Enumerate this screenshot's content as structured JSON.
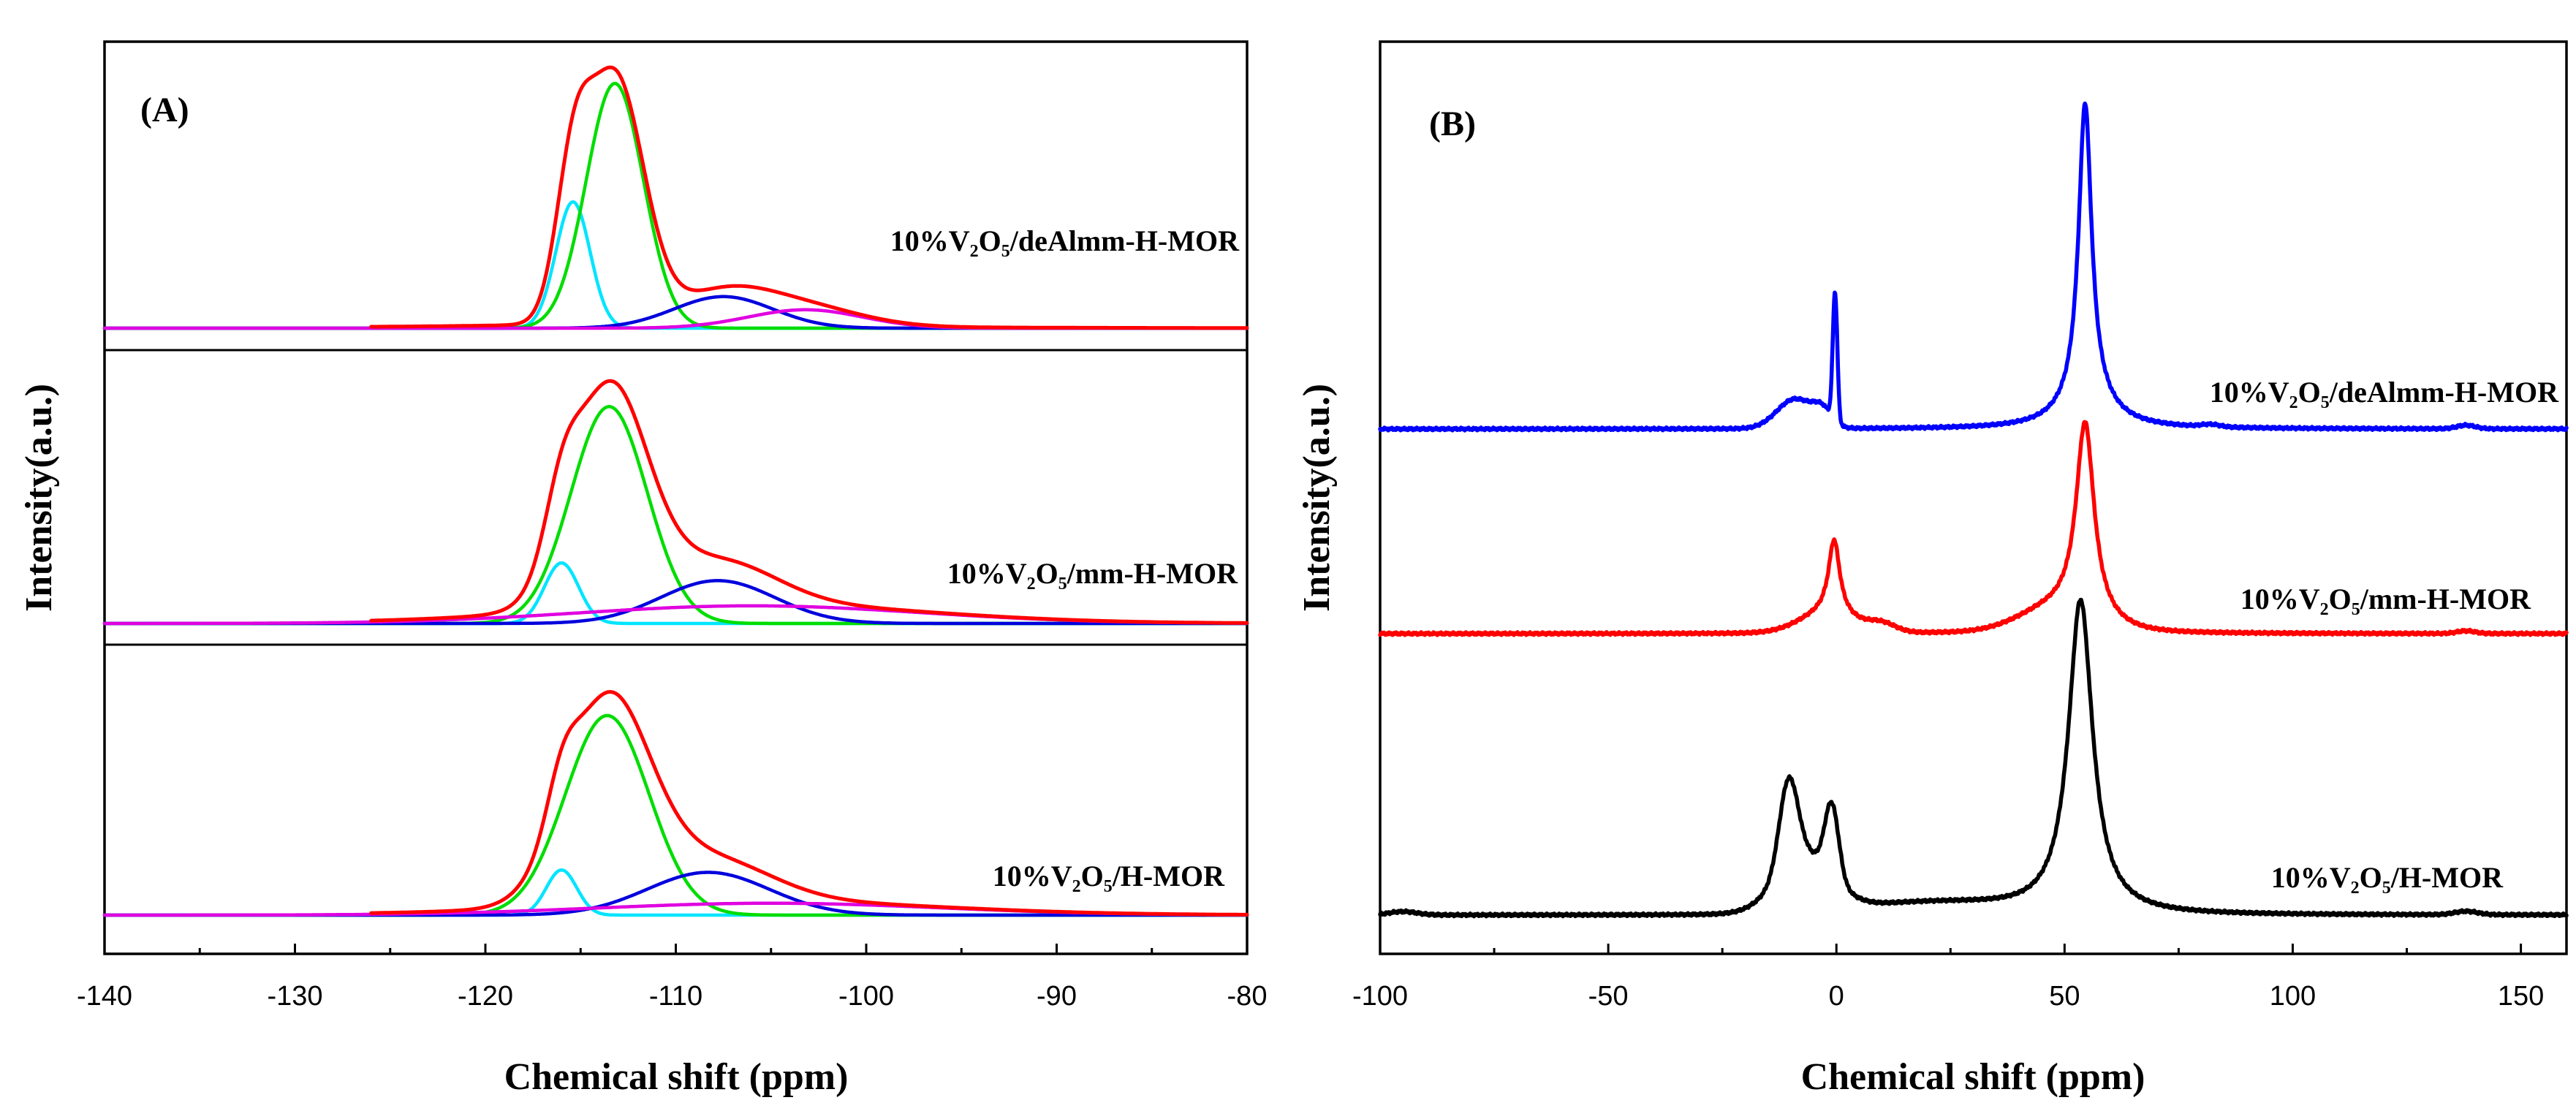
{
  "chart_data": [
    {
      "panel": "(A)",
      "type": "line",
      "xlabel": "Chemical shift (ppm)",
      "ylabel": "Intensity(a.u.)",
      "xlim": [
        -140,
        -80
      ],
      "xticks": [
        -140,
        -130,
        -120,
        -110,
        -100,
        -90,
        -80
      ],
      "grid": false,
      "baseline_min_ppm": -126,
      "colors": {
        "fit": "#ff0000",
        "cyan": "#00e5ff",
        "green": "#00dd00",
        "blue": "#0000dd",
        "magenta": "#e000e0"
      },
      "series": [
        {
          "name": "10%V2O5/deAlmm-H-MOR",
          "label": "10%V₂O₅/deAlmm-H-MOR",
          "components": [
            {
              "color": "cyan",
              "center": -115.4,
              "width": 0.9,
              "height": 0.48
            },
            {
              "color": "green",
              "center": -113.2,
              "width": 1.5,
              "height": 0.93
            },
            {
              "color": "blue",
              "center": -107.5,
              "width": 2.6,
              "height": 0.12
            },
            {
              "color": "magenta",
              "center": -103.2,
              "width": 3.0,
              "height": 0.07
            }
          ]
        },
        {
          "name": "10%V2O5/mm-H-MOR",
          "label": "10%V₂O₅/mm-H-MOR",
          "components": [
            {
              "color": "cyan",
              "center": -116.0,
              "width": 0.9,
              "height": 0.24
            },
            {
              "color": "green",
              "center": -113.5,
              "width": 2.0,
              "height": 0.86
            },
            {
              "color": "blue",
              "center": -107.8,
              "width": 3.0,
              "height": 0.17
            },
            {
              "color": "magenta",
              "center": -106.0,
              "width": 9.0,
              "height": 0.07
            }
          ]
        },
        {
          "name": "10%V2O5/H-MOR",
          "label": "10%V₂O₅/H-MOR",
          "components": [
            {
              "color": "cyan",
              "center": -116.0,
              "width": 0.8,
              "height": 0.19
            },
            {
              "color": "green",
              "center": -113.6,
              "width": 2.2,
              "height": 0.84
            },
            {
              "color": "blue",
              "center": -108.3,
              "width": 3.2,
              "height": 0.18
            },
            {
              "color": "magenta",
              "center": -105.0,
              "width": 9.0,
              "height": 0.05
            }
          ]
        }
      ]
    },
    {
      "panel": "(B)",
      "type": "line",
      "xlabel": "Chemical shift (ppm)",
      "ylabel": "Intensity(a.u.)",
      "xlim": [
        -100,
        160
      ],
      "xticks": [
        -100,
        -50,
        0,
        50,
        100,
        150
      ],
      "grid": false,
      "series": [
        {
          "name": "10%V2O5/deAlmm-H-MOR",
          "label": "10%V₂O₅/deAlmm-H-MOR",
          "color": "#0000ff",
          "peaks": [
            {
              "center": 54.5,
              "width": 1.7,
              "height": 1.0,
              "shape": "lorentz"
            },
            {
              "center": 55.0,
              "width": 6.0,
              "height": 0.1,
              "shape": "lorentz"
            },
            {
              "center": -0.3,
              "width": 0.5,
              "height": 0.43,
              "shape": "gauss"
            },
            {
              "center": -9.0,
              "width": 4.0,
              "height": 0.1,
              "shape": "gauss"
            },
            {
              "center": -3.0,
              "width": 2.0,
              "height": 0.05,
              "shape": "gauss"
            },
            {
              "center": 82.0,
              "width": 2.0,
              "height": 0.008,
              "shape": "gauss"
            },
            {
              "center": 138.0,
              "width": 2.0,
              "height": 0.012,
              "shape": "gauss"
            }
          ]
        },
        {
          "name": "10%V2O5/mm-H-MOR",
          "label": "10%V₂O₅/mm-H-MOR",
          "color": "#ff0000",
          "peaks": [
            {
              "center": 54.5,
              "width": 2.4,
              "height": 0.73,
              "shape": "lorentz"
            },
            {
              "center": 48.0,
              "width": 8.0,
              "height": 0.08,
              "shape": "gauss"
            },
            {
              "center": -0.5,
              "width": 1.5,
              "height": 0.28,
              "shape": "lorentz"
            },
            {
              "center": -2.0,
              "width": 6.0,
              "height": 0.07,
              "shape": "gauss"
            },
            {
              "center": 10.0,
              "width": 3.0,
              "height": 0.03,
              "shape": "gauss"
            },
            {
              "center": 138.0,
              "width": 2.0,
              "height": 0.01,
              "shape": "gauss"
            }
          ]
        },
        {
          "name": "10%V2O5/H-MOR",
          "label": "10%V₂O₅/H-MOR",
          "color": "#000000",
          "peaks": [
            {
              "center": 53.5,
              "width": 3.2,
              "height": 1.1,
              "shape": "lorentz"
            },
            {
              "center": -10.5,
              "width": 2.0,
              "height": 0.3,
              "shape": "gauss"
            },
            {
              "center": -1.0,
              "width": 1.5,
              "height": 0.25,
              "shape": "gauss"
            },
            {
              "center": -7.0,
              "width": 6.0,
              "height": 0.2,
              "shape": "gauss"
            },
            {
              "center": 20.0,
              "width": 18.0,
              "height": 0.04,
              "shape": "gauss"
            },
            {
              "center": -95.0,
              "width": 3.0,
              "height": 0.012,
              "shape": "gauss"
            },
            {
              "center": 138.0,
              "width": 2.5,
              "height": 0.012,
              "shape": "gauss"
            }
          ]
        }
      ]
    }
  ]
}
